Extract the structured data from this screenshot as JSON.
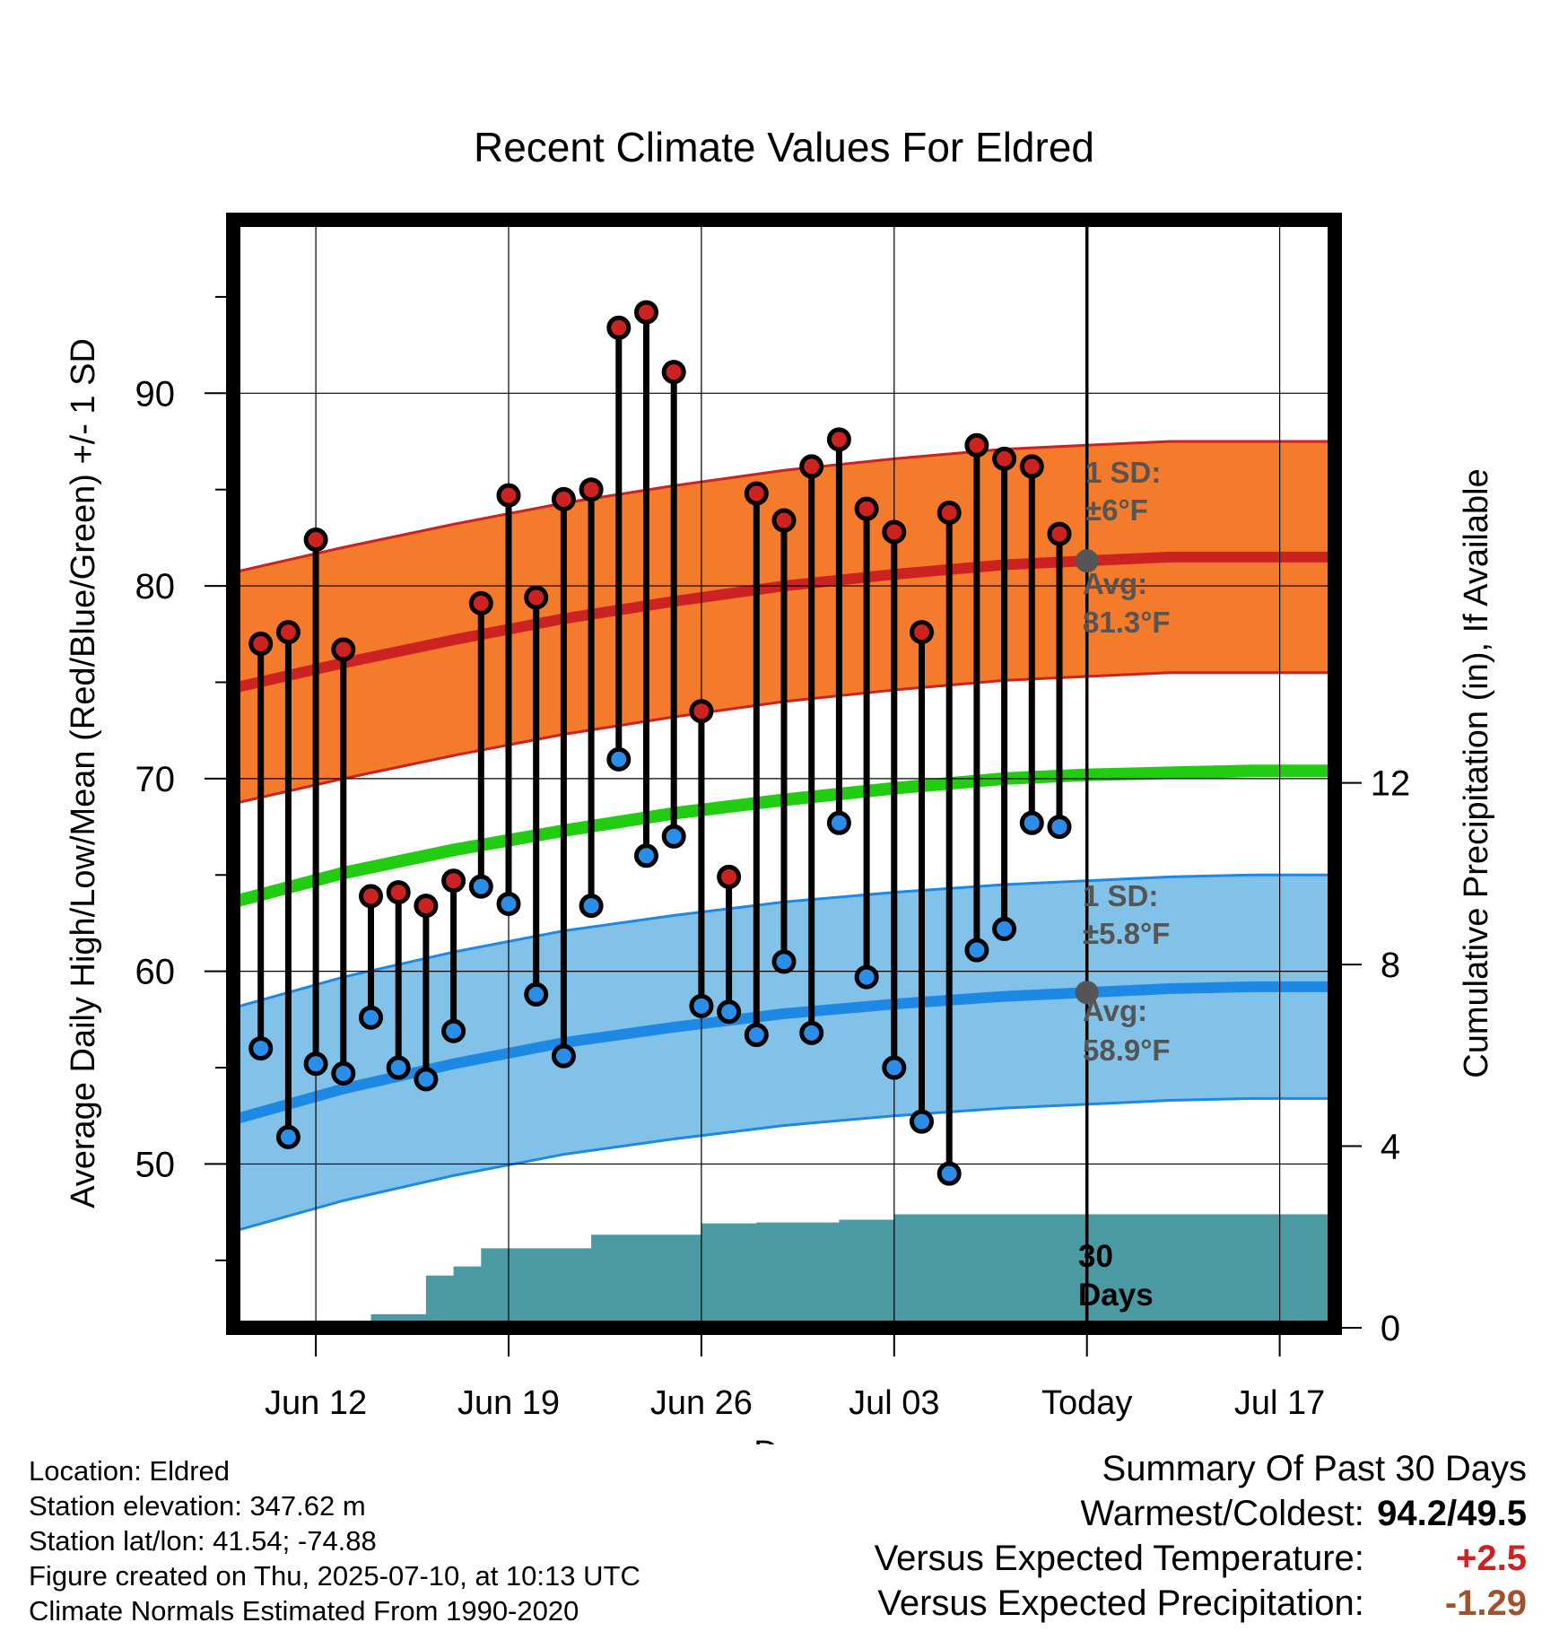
{
  "chart_data": {
    "type": "line",
    "title": "Recent Climate Values For Eldred",
    "xlabel": "Day",
    "ylabel": "Average Daily High/Low/Mean (Red/Blue/Green) +/- 1 SD",
    "y2label": "Cumulative Precipitation (in), If Available",
    "ylim": [
      41.5,
      99
    ],
    "y2lim": [
      0,
      24.4
    ],
    "y_ticks": [
      "50",
      "60",
      "70",
      "80",
      "90"
    ],
    "y2_ticks": [
      "0",
      "4",
      "8",
      "12"
    ],
    "x_ticks": [
      "Jun 12",
      "Jun 19",
      "Jun 26",
      "Jul 03",
      "Today",
      "Jul 17"
    ],
    "x_range": [
      "2025-06-09",
      "2025-07-19"
    ],
    "today": "2025-07-10",
    "grid": true,
    "days": [
      "2025-06-10",
      "2025-06-11",
      "2025-06-12",
      "2025-06-13",
      "2025-06-14",
      "2025-06-15",
      "2025-06-16",
      "2025-06-17",
      "2025-06-18",
      "2025-06-19",
      "2025-06-20",
      "2025-06-21",
      "2025-06-22",
      "2025-06-23",
      "2025-06-24",
      "2025-06-25",
      "2025-06-26",
      "2025-06-27",
      "2025-06-28",
      "2025-06-29",
      "2025-06-30",
      "2025-07-01",
      "2025-07-02",
      "2025-07-03",
      "2025-07-04",
      "2025-07-05",
      "2025-07-06",
      "2025-07-07",
      "2025-07-08",
      "2025-07-09"
    ],
    "series": [
      {
        "name": "High",
        "color": "#cc2222",
        "values": [
          77.0,
          77.6,
          82.4,
          76.7,
          63.9,
          64.1,
          63.4,
          64.7,
          79.1,
          84.7,
          79.4,
          84.5,
          85.0,
          93.4,
          94.2,
          91.1,
          73.5,
          64.9,
          84.8,
          83.4,
          86.2,
          87.6,
          84.0,
          82.8,
          77.6,
          83.8,
          87.3,
          86.6,
          86.2,
          82.7
        ]
      },
      {
        "name": "Low",
        "color": "#2a8ee8",
        "values": [
          56.0,
          51.4,
          55.2,
          54.7,
          57.6,
          55.0,
          54.4,
          56.9,
          64.4,
          63.5,
          58.8,
          55.6,
          63.4,
          71.0,
          66.0,
          67.0,
          58.2,
          57.9,
          56.7,
          60.5,
          56.8,
          67.7,
          59.7,
          55.0,
          52.2,
          49.5,
          61.1,
          62.2,
          67.7,
          67.5
        ]
      }
    ],
    "normals": {
      "x": [
        "2025-06-09",
        "2025-06-13",
        "2025-06-17",
        "2025-06-21",
        "2025-06-25",
        "2025-06-29",
        "2025-07-03",
        "2025-07-07",
        "2025-07-10",
        "2025-07-13",
        "2025-07-16",
        "2025-07-19"
      ],
      "high_avg": [
        74.7,
        76.0,
        77.2,
        78.3,
        79.2,
        80.0,
        80.6,
        81.1,
        81.3,
        81.5,
        81.5,
        81.5
      ],
      "low_avg": [
        52.3,
        53.9,
        55.2,
        56.3,
        57.1,
        57.8,
        58.3,
        58.7,
        58.9,
        59.1,
        59.2,
        59.2
      ],
      "mean_avg": [
        63.6,
        65.1,
        66.3,
        67.3,
        68.2,
        68.9,
        69.5,
        70.0,
        70.2,
        70.3,
        70.4,
        70.4
      ],
      "high_sd": 6,
      "low_sd": 5.8,
      "high_band_color": "#f47a2c",
      "low_band_color": "#83c2e8",
      "mean_color": "#22cc11"
    },
    "precip": {
      "color": "#4a9aa3",
      "days": [
        "2025-06-09",
        "2025-06-10",
        "2025-06-11",
        "2025-06-12",
        "2025-06-13",
        "2025-06-14",
        "2025-06-15",
        "2025-06-16",
        "2025-06-17",
        "2025-06-18",
        "2025-06-19",
        "2025-06-20",
        "2025-06-21",
        "2025-06-22",
        "2025-06-23",
        "2025-06-24",
        "2025-06-25",
        "2025-06-26",
        "2025-06-27",
        "2025-06-28",
        "2025-06-29",
        "2025-06-30",
        "2025-07-01",
        "2025-07-02",
        "2025-07-03",
        "2025-07-04",
        "2025-07-19"
      ],
      "values": [
        0,
        0,
        0,
        0,
        0,
        0.3,
        0.3,
        1.15,
        1.35,
        1.75,
        1.75,
        1.75,
        1.75,
        2.05,
        2.05,
        2.05,
        2.05,
        2.3,
        2.3,
        2.32,
        2.32,
        2.32,
        2.38,
        2.38,
        2.5,
        2.5,
        2.5
      ]
    },
    "annotations": {
      "high_sd_label": "1 SD:",
      "high_sd_value": "±6°F",
      "high_avg_label": "Avg:",
      "high_avg_value": "81.3°F",
      "low_sd_label": "1 SD:",
      "low_sd_value": "±5.8°F",
      "low_avg_label": "Avg:",
      "low_avg_value": "58.9°F",
      "days_count": "30",
      "days_word": "Days"
    }
  },
  "footer": {
    "location": "Location: Eldred",
    "elevation": "Station elevation: 347.62 m",
    "latlon": "Station lat/lon: 41.54; -74.88",
    "created": "Figure created on Thu, 2025-07-10, at 10:13 UTC",
    "normals_note": "Climate Normals Estimated From 1990-2020"
  },
  "summary": {
    "title": "Summary Of Past 30 Days",
    "warm_cold_label": "Warmest/Coldest:",
    "warm_cold_value": "94.2/49.5",
    "temp_label": "Versus Expected Temperature:",
    "temp_value": "+2.5",
    "temp_color": "#cc2222",
    "precip_label": "Versus Expected Precipitation:",
    "precip_value": "-1.29",
    "precip_color": "#a0522d"
  }
}
